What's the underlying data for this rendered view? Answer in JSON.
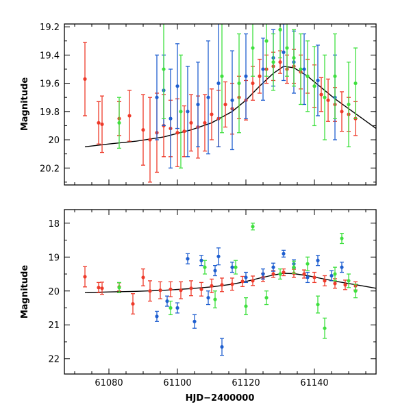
{
  "chart_data": [
    {
      "id": "top",
      "type": "scatter",
      "ylabel": "Magnitude",
      "xlabel": "",
      "xlim": [
        61067,
        61158
      ],
      "ylim": [
        20.32,
        19.18
      ],
      "y_inverted": true,
      "xticks": [
        61080,
        61100,
        61120,
        61140
      ],
      "xtick_labels": [
        "",
        "",
        "",
        ""
      ],
      "yticks": [
        19.2,
        19.4,
        19.6,
        19.8,
        20.0,
        20.2
      ],
      "ytick_labels": [
        "19.2",
        "19.4",
        "19.6",
        "19.8",
        "20",
        "20.2"
      ],
      "model_curve": {
        "x": [
          61073,
          61080,
          61088,
          61096,
          61104,
          61110,
          61116,
          61120,
          61124,
          61128,
          61131,
          61134,
          61138,
          61142,
          61146,
          61150,
          61154,
          61158
        ],
        "y": [
          20.05,
          20.03,
          20.01,
          19.98,
          19.93,
          19.88,
          19.8,
          19.72,
          19.62,
          19.53,
          19.48,
          19.49,
          19.55,
          19.63,
          19.71,
          19.78,
          19.85,
          19.92
        ]
      },
      "series": [
        {
          "name": "red",
          "color": "#ee3a2a",
          "x": [
            61073,
            61077,
            61078,
            61083,
            61086,
            61090,
            61092,
            61094,
            61096,
            61098,
            61100,
            61102,
            61104,
            61106,
            61108,
            61110,
            61112,
            61114,
            61116,
            61118,
            61120,
            61122,
            61124,
            61126,
            61128,
            61130,
            61132,
            61134,
            61136,
            61138,
            61140,
            61142,
            61144,
            61146,
            61148,
            61150,
            61152
          ],
          "y": [
            19.57,
            19.88,
            19.89,
            19.85,
            19.83,
            19.93,
            20.0,
            19.95,
            19.9,
            19.92,
            19.95,
            19.94,
            19.88,
            19.91,
            19.88,
            19.82,
            19.85,
            19.75,
            19.78,
            19.7,
            19.72,
            19.6,
            19.55,
            19.5,
            19.48,
            19.45,
            19.5,
            19.48,
            19.52,
            19.55,
            19.62,
            19.68,
            19.72,
            19.75,
            19.8,
            19.82,
            19.85
          ],
          "err": [
            0.26,
            0.15,
            0.2,
            0.12,
            0.18,
            0.25,
            0.3,
            0.28,
            0.22,
            0.2,
            0.24,
            0.18,
            0.2,
            0.22,
            0.2,
            0.18,
            0.2,
            0.16,
            0.18,
            0.15,
            0.14,
            0.12,
            0.12,
            0.1,
            0.1,
            0.08,
            0.1,
            0.12,
            0.12,
            0.12,
            0.15,
            0.12,
            0.15,
            0.12,
            0.14,
            0.12,
            0.12
          ]
        },
        {
          "name": "blue",
          "color": "#1f5fd0",
          "x": [
            61094,
            61096,
            61098,
            61100,
            61103,
            61106,
            61109,
            61112,
            61116,
            61120,
            61125,
            61128,
            61131,
            61134,
            61137,
            61141,
            61146
          ],
          "y": [
            19.7,
            19.65,
            19.85,
            19.62,
            19.8,
            19.75,
            19.7,
            19.6,
            19.72,
            19.55,
            19.5,
            19.42,
            19.38,
            19.45,
            19.5,
            19.58,
            19.7
          ],
          "err": [
            0.3,
            0.25,
            0.35,
            0.3,
            0.32,
            0.3,
            0.4,
            0.45,
            0.35,
            0.3,
            0.22,
            0.2,
            0.2,
            0.22,
            0.25,
            0.25,
            0.3
          ]
        },
        {
          "name": "green",
          "color": "#3fe03f",
          "x": [
            61083,
            61096,
            61101,
            61113,
            61118,
            61122,
            61126,
            61128,
            61130,
            61132,
            61134,
            61136,
            61138,
            61140,
            61143,
            61146,
            61150,
            61152
          ],
          "y": [
            19.88,
            19.5,
            19.8,
            19.55,
            19.6,
            19.35,
            19.3,
            19.45,
            19.22,
            19.35,
            19.42,
            19.5,
            19.55,
            19.62,
            19.7,
            19.55,
            19.75,
            19.6
          ],
          "err": [
            0.18,
            0.35,
            0.4,
            0.4,
            0.35,
            0.2,
            0.25,
            0.2,
            0.2,
            0.2,
            0.2,
            0.25,
            0.25,
            0.28,
            0.3,
            0.3,
            0.3,
            0.25
          ]
        }
      ]
    },
    {
      "id": "bottom",
      "type": "scatter",
      "ylabel": "Magnitude",
      "xlabel": "HJD−2400000",
      "xlim": [
        61067,
        61158
      ],
      "ylim": [
        22.45,
        17.6
      ],
      "y_inverted": true,
      "xticks": [
        61080,
        61100,
        61120,
        61140
      ],
      "xtick_labels": [
        "61080",
        "61100",
        "61120",
        "61140"
      ],
      "yticks": [
        18,
        19,
        20,
        21,
        22
      ],
      "ytick_labels": [
        "18",
        "19",
        "20",
        "21",
        "22"
      ],
      "model_curve": {
        "x": [
          61073,
          61080,
          61088,
          61096,
          61104,
          61110,
          61116,
          61120,
          61124,
          61128,
          61131,
          61134,
          61138,
          61142,
          61146,
          61150,
          61154,
          61158
        ],
        "y": [
          20.05,
          20.03,
          20.01,
          19.98,
          19.93,
          19.88,
          19.8,
          19.72,
          19.62,
          19.53,
          19.48,
          19.49,
          19.55,
          19.63,
          19.71,
          19.78,
          19.85,
          19.92
        ]
      },
      "series": [
        {
          "name": "red",
          "color": "#ee3a2a",
          "x": [
            61073,
            61077,
            61078,
            61083,
            61087,
            61090,
            61092,
            61095,
            61098,
            61101,
            61104,
            61107,
            61110,
            61113,
            61116,
            61119,
            61122,
            61125,
            61128,
            61131,
            61134,
            61137,
            61140,
            61143,
            61146,
            61149,
            61152
          ],
          "y": [
            19.58,
            19.9,
            19.92,
            19.88,
            20.38,
            19.6,
            20.0,
            19.98,
            19.95,
            19.98,
            19.92,
            19.95,
            19.85,
            19.82,
            19.8,
            19.72,
            19.7,
            19.6,
            19.5,
            19.45,
            19.48,
            19.5,
            19.6,
            19.7,
            19.78,
            19.82,
            19.85
          ],
          "err": [
            0.3,
            0.15,
            0.18,
            0.12,
            0.3,
            0.25,
            0.3,
            0.25,
            0.22,
            0.25,
            0.22,
            0.2,
            0.2,
            0.2,
            0.18,
            0.15,
            0.14,
            0.12,
            0.1,
            0.1,
            0.12,
            0.12,
            0.15,
            0.15,
            0.14,
            0.14,
            0.12
          ]
        },
        {
          "name": "blue",
          "color": "#1f5fd0",
          "x": [
            61094,
            61097,
            61100,
            61103,
            61105,
            61107,
            61109,
            61111,
            61112,
            61113,
            61116,
            61120,
            61125,
            61128,
            61131,
            61134,
            61138,
            61141,
            61145,
            61148
          ],
          "y": [
            20.75,
            20.3,
            20.5,
            19.05,
            20.9,
            19.1,
            20.2,
            19.4,
            18.98,
            21.65,
            19.3,
            19.6,
            19.5,
            19.3,
            18.9,
            19.2,
            19.6,
            19.1,
            19.55,
            19.3
          ],
          "err": [
            0.15,
            0.15,
            0.15,
            0.15,
            0.2,
            0.15,
            0.2,
            0.15,
            0.25,
            0.25,
            0.15,
            0.15,
            0.15,
            0.12,
            0.1,
            0.12,
            0.15,
            0.15,
            0.15,
            0.15
          ]
        },
        {
          "name": "green",
          "color": "#3fe03f",
          "x": [
            61083,
            61098,
            61108,
            61111,
            61117,
            61120,
            61122,
            61126,
            61130,
            61134,
            61138,
            61141,
            61143,
            61146,
            61148,
            61150,
            61152
          ],
          "y": [
            19.9,
            20.5,
            19.3,
            20.25,
            19.3,
            20.45,
            18.1,
            20.2,
            19.5,
            19.3,
            19.2,
            20.4,
            21.1,
            19.5,
            18.45,
            19.7,
            20.0
          ],
          "err": [
            0.15,
            0.2,
            0.2,
            0.25,
            0.2,
            0.25,
            0.1,
            0.2,
            0.15,
            0.18,
            0.2,
            0.25,
            0.3,
            0.2,
            0.15,
            0.2,
            0.2
          ]
        }
      ]
    }
  ]
}
